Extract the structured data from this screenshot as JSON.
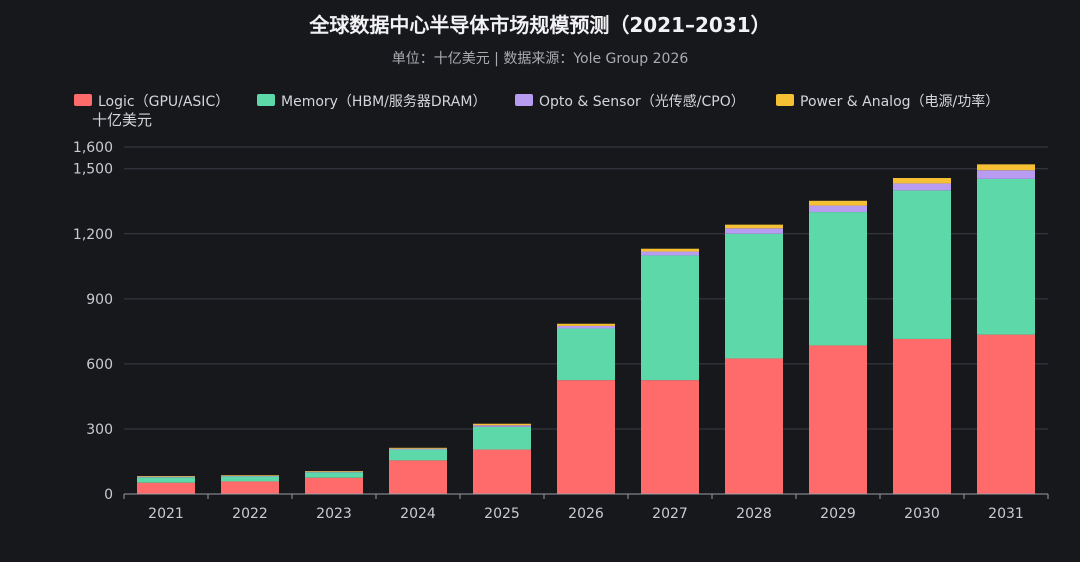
{
  "chart_data": {
    "type": "bar",
    "stacked": true,
    "title": "全球数据中心半导体市场规模预测（2021–2031）",
    "subtitle": "单位：十亿美元 | 数据来源：Yole Group 2026",
    "ylabel": "十亿美元",
    "xlabel": "",
    "categories": [
      "2021",
      "2022",
      "2023",
      "2024",
      "2025",
      "2026",
      "2027",
      "2028",
      "2029",
      "2030",
      "2031"
    ],
    "ylim": [
      0,
      1600
    ],
    "yticks": [
      0,
      300,
      600,
      900,
      1200,
      1500,
      1600
    ],
    "ytick_labels": [
      "0",
      "300",
      "600",
      "900",
      "1,200",
      "1,500",
      "1,600"
    ],
    "grid": true,
    "legend_position": "top",
    "series": [
      {
        "name": "Logic（GPU/ASIC）",
        "color": "#ff6b6b",
        "values": [
          52,
          58,
          75,
          155,
          205,
          525,
          525,
          625,
          685,
          715,
          735
        ]
      },
      {
        "name": "Memory（HBM/服务器DRAM）",
        "color": "#5dd8a8",
        "values": [
          25,
          23,
          25,
          50,
          105,
          238,
          575,
          575,
          615,
          685,
          718
        ]
      },
      {
        "name": "Opto & Sensor（光传感/CPO）",
        "color": "#b79cf2",
        "values": [
          3,
          3,
          3,
          4,
          7,
          12,
          18,
          25,
          30,
          32,
          40
        ]
      },
      {
        "name": "Power & Analog（电源/功率）",
        "color": "#f5c033",
        "values": [
          3,
          3,
          3,
          4,
          7,
          10,
          13,
          17,
          22,
          25,
          27
        ]
      }
    ]
  }
}
